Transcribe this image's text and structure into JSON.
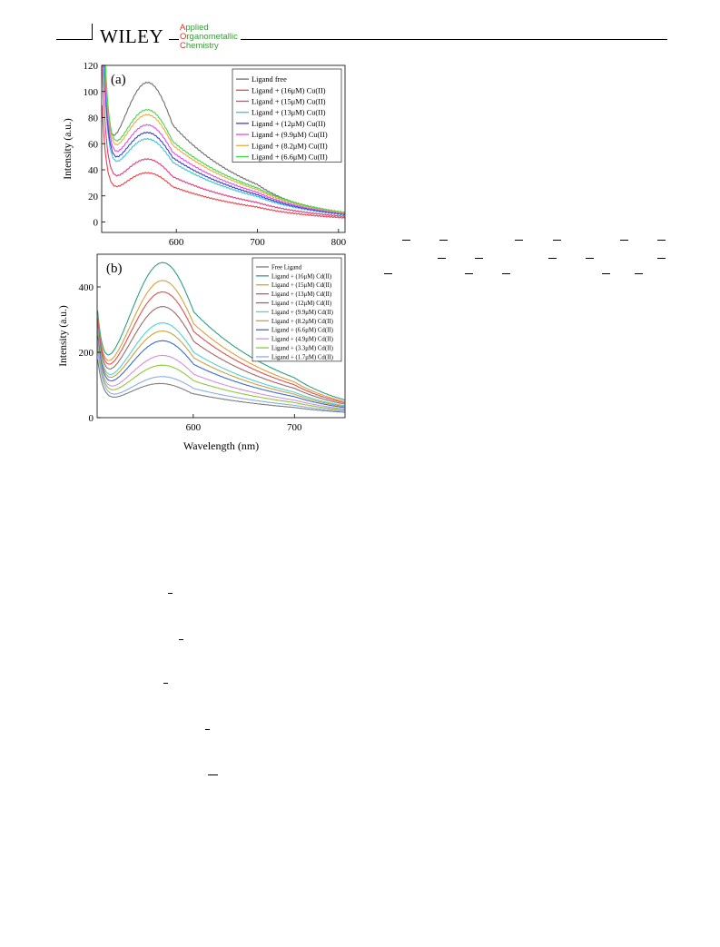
{
  "header": {
    "publisher": "WILEY",
    "journal_lines": [
      {
        "first": "A",
        "rest": "pplied"
      },
      {
        "first": "O",
        "rest": "rganometallic"
      },
      {
        "first": "C",
        "rest": "hemistry"
      }
    ]
  },
  "colors": {
    "journal_text": "#3a9a3a",
    "journal_initials": "#d8332a"
  },
  "chart_data": [
    {
      "type": "line",
      "panel_label": "(a)",
      "xlabel": "",
      "ylabel": "Intensity (a.u.)",
      "xlim": [
        508,
        808
      ],
      "ylim": [
        -8,
        120
      ],
      "xticks": [
        600,
        700,
        800
      ],
      "yticks": [
        0,
        20,
        40,
        60,
        80,
        100,
        120
      ],
      "legend_position": "top-right",
      "series": [
        {
          "name": "Ligand free",
          "color": "#6f6f6f",
          "peak_x": 565,
          "peak_y": 109,
          "min_y": 40,
          "end_y": 2
        },
        {
          "name": "Ligand + (16μM) Cu(II)",
          "color": "#e8454a",
          "peak_x": 565,
          "peak_y": 39,
          "min_y": 25,
          "end_y": 1
        },
        {
          "name": "Ligand + (15μM) Cu(II)",
          "color": "#e03c84",
          "peak_x": 565,
          "peak_y": 50,
          "min_y": 35,
          "end_y": 1
        },
        {
          "name": "Ligand + (13μM) Cu(II)",
          "color": "#35c8cf",
          "peak_x": 565,
          "peak_y": 66,
          "min_y": 45,
          "end_y": 1
        },
        {
          "name": "Ligand + (12μM) Cu(II)",
          "color": "#3d3dd8",
          "peak_x": 565,
          "peak_y": 71,
          "min_y": 48,
          "end_y": 1
        },
        {
          "name": "Ligand + (9.9μM) Cu(II)",
          "color": "#df4ff0",
          "peak_x": 565,
          "peak_y": 77,
          "min_y": 52,
          "end_y": 1
        },
        {
          "name": "Ligand + (8.2μM) Cu(II)",
          "color": "#e8b040",
          "peak_x": 565,
          "peak_y": 85,
          "min_y": 55,
          "end_y": 1
        },
        {
          "name": "Ligand + (6.6μM) Cu(II)",
          "color": "#45d64a",
          "peak_x": 565,
          "peak_y": 89,
          "min_y": 58,
          "end_y": 2
        }
      ]
    },
    {
      "type": "line",
      "panel_label": "(b)",
      "xlabel": "Wavelength (nm)",
      "ylabel": "Intensity (a.u.)",
      "xlim": [
        505,
        750
      ],
      "ylim": [
        0,
        500
      ],
      "xticks": [
        600,
        700
      ],
      "yticks": [
        0,
        200,
        400
      ],
      "legend_position": "top-right",
      "series": [
        {
          "name": "Free Ligand",
          "color": "#7c7c7c",
          "peak_x": 568,
          "peak_y": 108,
          "min_y": 48,
          "end_y": 12
        },
        {
          "name": "Ligand + (16μM) Cd(II)",
          "color": "#2e9e82",
          "peak_x": 570,
          "peak_y": 480,
          "min_y": 75,
          "end_y": 18
        },
        {
          "name": "Ligand + (15μM) Cd(II)",
          "color": "#d8a03a",
          "peak_x": 570,
          "peak_y": 425,
          "min_y": 73,
          "end_y": 17
        },
        {
          "name": "Ligand + (13μM) Cd(II)",
          "color": "#e05050",
          "peak_x": 570,
          "peak_y": 390,
          "min_y": 72,
          "end_y": 16
        },
        {
          "name": "Ligand + (12μM) Cd(II)",
          "color": "#9a6a6a",
          "peak_x": 570,
          "peak_y": 345,
          "min_y": 70,
          "end_y": 16
        },
        {
          "name": "Ligand + (9.9μM) Cd(II)",
          "color": "#4fd0d8",
          "peak_x": 570,
          "peak_y": 295,
          "min_y": 68,
          "end_y": 15
        },
        {
          "name": "Ligand + (8.2μM) Cd(II)",
          "color": "#c8a23a",
          "peak_x": 570,
          "peak_y": 270,
          "min_y": 66,
          "end_y": 15
        },
        {
          "name": "Ligand + (6.6μM) Cd(II)",
          "color": "#3a6ad0",
          "peak_x": 570,
          "peak_y": 240,
          "min_y": 64,
          "end_y": 14
        },
        {
          "name": "Ligand + (4.9μM) Cd(II)",
          "color": "#d090e0",
          "peak_x": 570,
          "peak_y": 195,
          "min_y": 62,
          "end_y": 14
        },
        {
          "name": "Ligand + (3.3μM) Cd(II)",
          "color": "#8ec83a",
          "peak_x": 570,
          "peak_y": 165,
          "min_y": 60,
          "end_y": 13
        },
        {
          "name": "Ligand + (1.7μM) Cd(II)",
          "color": "#8aaee0",
          "peak_x": 570,
          "peak_y": 130,
          "min_y": 58,
          "end_y": 13
        }
      ]
    }
  ]
}
